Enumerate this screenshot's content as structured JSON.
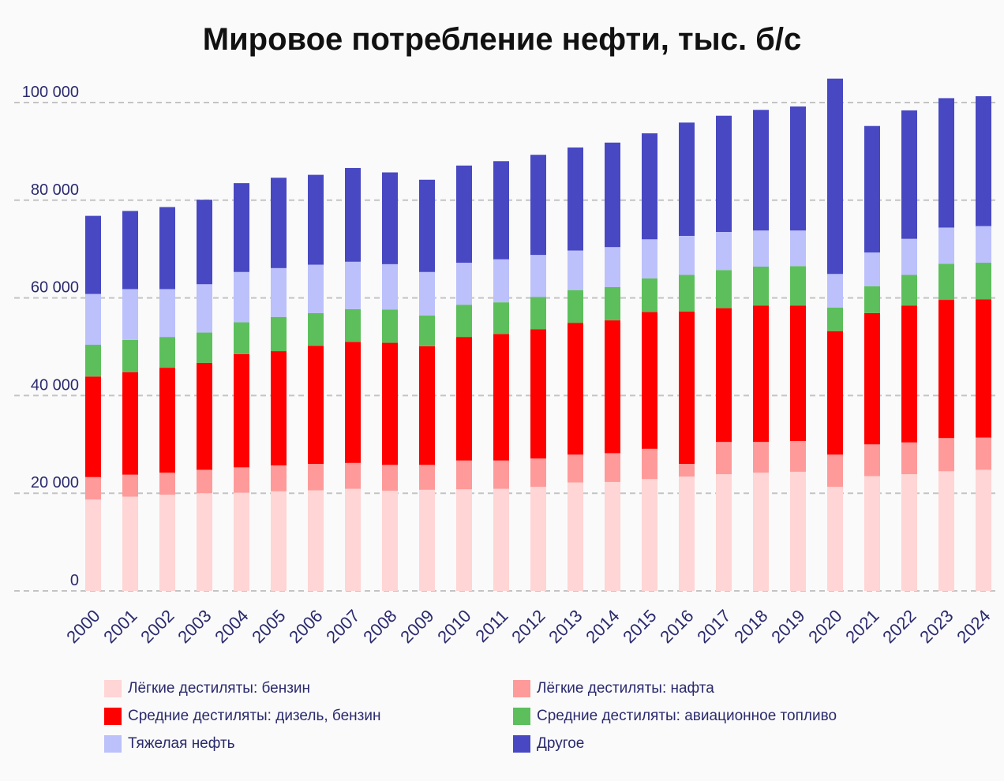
{
  "chart_data": {
    "type": "bar",
    "stacked": true,
    "title": "Мировое потребление нефти, тыс. б/с",
    "xlabel": "",
    "ylabel": "",
    "ylim": [
      0,
      100000
    ],
    "y_ticks": [
      0,
      20000,
      40000,
      60000,
      80000,
      100000
    ],
    "y_tick_labels": [
      "0",
      "20 000",
      "40 000",
      "60 000",
      "80 000",
      "100 000"
    ],
    "grid": "horizontal dashed",
    "legend_position": "bottom",
    "categories": [
      "2000",
      "2001",
      "2002",
      "2003",
      "2004",
      "2005",
      "2006",
      "2007",
      "2008",
      "2009",
      "2010",
      "2011",
      "2012",
      "2013",
      "2014",
      "2015",
      "2016",
      "2017",
      "2018",
      "2019",
      "2020",
      "2021",
      "2022",
      "2023",
      "2024"
    ],
    "series": [
      {
        "name": "Лёгкие дестиляты: бензин",
        "color": "#ffd5d5",
        "values": [
          18700,
          19300,
          19700,
          20000,
          20100,
          20400,
          20600,
          20900,
          20500,
          20700,
          20800,
          20900,
          21300,
          22200,
          22300,
          22900,
          23400,
          23900,
          24200,
          24400,
          21300,
          23500,
          23900,
          24500,
          24800
        ]
      },
      {
        "name": "Лёгкие дестиляты: нафта",
        "color": "#ff9a9a",
        "values": [
          4600,
          4500,
          4500,
          4800,
          5200,
          5300,
          5400,
          5300,
          5300,
          5100,
          5900,
          5800,
          5800,
          5700,
          5900,
          6200,
          2600,
          6600,
          6300,
          6300,
          6600,
          6500,
          6500,
          6800,
          6600
        ]
      },
      {
        "name": "Средние дестиляты: дизель, бензин",
        "color": "#ff0000",
        "values": [
          20600,
          21000,
          21500,
          21900,
          23200,
          23400,
          24200,
          24800,
          25000,
          24300,
          25300,
          25900,
          26500,
          27000,
          27200,
          28000,
          31200,
          27400,
          27900,
          27700,
          25300,
          26900,
          28000,
          28300,
          28300
        ]
      },
      {
        "name": "Средние дестиляты: авиационное топливо",
        "color": "#5cbf5c",
        "values": [
          6500,
          6600,
          6300,
          6200,
          6500,
          7000,
          6700,
          6700,
          6800,
          6300,
          6600,
          6500,
          6600,
          6700,
          6800,
          6900,
          7500,
          7800,
          8000,
          8100,
          4800,
          5500,
          6300,
          7400,
          7500
        ]
      },
      {
        "name": "Тяжелая нефть",
        "color": "#bcc0fb",
        "values": [
          10400,
          10400,
          9800,
          9900,
          10300,
          10000,
          9900,
          9700,
          9300,
          8900,
          8600,
          8800,
          8600,
          8100,
          8200,
          8000,
          8000,
          7800,
          7400,
          7300,
          6900,
          6900,
          7400,
          7400,
          7500
        ]
      },
      {
        "name": "Другое",
        "color": "#4848c2",
        "values": [
          16000,
          16000,
          16800,
          17300,
          18200,
          18500,
          18400,
          19200,
          18800,
          18900,
          19900,
          20100,
          20500,
          21100,
          21400,
          21700,
          23200,
          23800,
          24700,
          25400,
          40000,
          25900,
          26300,
          26500,
          26600
        ]
      }
    ]
  }
}
